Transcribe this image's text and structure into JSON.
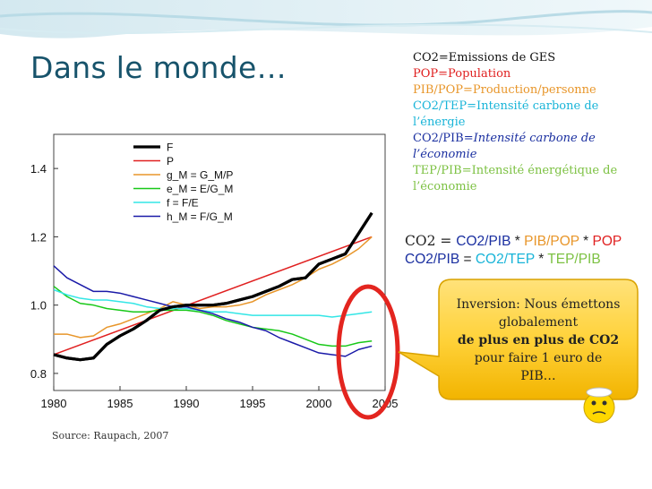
{
  "slide": {
    "title": "Dans le monde…",
    "source": "Source: Raupach, 2007"
  },
  "definitions": [
    {
      "text": "CO2=Emissions de GES",
      "color": "#111111",
      "italic": false
    },
    {
      "text": "POP=Population",
      "color": "#e02020",
      "italic": false
    },
    {
      "text": "PIB/POP=Production/personne",
      "color": "#e8962a",
      "italic": false
    },
    {
      "text": "CO2/TEP=Intensité carbone de l’énergie",
      "color": "#18b4d8",
      "italic": false
    },
    {
      "text_prefix": "CO2/PIB=",
      "text_rest": "Intensité carbone de l’économie",
      "color": "#1a2fa0",
      "italic": true
    },
    {
      "text": "TEP/PIB=Intensité énergétique de l’économie",
      "color": "#7cc142",
      "italic": false
    }
  ],
  "equations": {
    "eq1": [
      {
        "t": "CO2 = ",
        "c": "#222222",
        "serif": true
      },
      {
        "t": "CO2/PIB",
        "c": "#1a2fa0"
      },
      {
        "t": " * ",
        "c": "#222222"
      },
      {
        "t": "PIB/POP",
        "c": "#e8962a"
      },
      {
        "t": " * ",
        "c": "#222222"
      },
      {
        "t": "POP",
        "c": "#e02020"
      }
    ],
    "eq2": [
      {
        "t": "CO2/PIB",
        "c": "#1a2fa0"
      },
      {
        "t": " = ",
        "c": "#222222"
      },
      {
        "t": "CO2/TEP",
        "c": "#18b4d8"
      },
      {
        "t": " * ",
        "c": "#222222"
      },
      {
        "t": "TEP/PIB",
        "c": "#7cc142"
      }
    ]
  },
  "callout": {
    "line1": "Inversion: Nous émettons globalement",
    "bold": "de plus en plus de CO2",
    "line3": "pour faire 1 euro de PIB…"
  },
  "chart_data": {
    "type": "line",
    "xlim": [
      1980,
      2005
    ],
    "ylim": [
      0.75,
      1.5
    ],
    "x_ticks": [
      1980,
      1985,
      1990,
      1995,
      2000,
      2005
    ],
    "y_ticks": [
      0.8,
      1.0,
      1.2,
      1.4
    ],
    "legend_position": "top-left",
    "series": [
      {
        "name": "F",
        "color": "#000000",
        "width": 3.2,
        "x": [
          1980,
          1981,
          1982,
          1983,
          1984,
          1985,
          1986,
          1987,
          1988,
          1989,
          1990,
          1991,
          1992,
          1993,
          1994,
          1995,
          1996,
          1997,
          1998,
          1999,
          2000,
          2001,
          2002,
          2003,
          2004
        ],
        "y": [
          0.855,
          0.845,
          0.84,
          0.845,
          0.885,
          0.91,
          0.93,
          0.955,
          0.985,
          0.995,
          1.0,
          1.0,
          1.0,
          1.005,
          1.015,
          1.025,
          1.04,
          1.055,
          1.075,
          1.08,
          1.12,
          1.135,
          1.15,
          1.21,
          1.27
        ]
      },
      {
        "name": "P",
        "color": "#e02020",
        "width": 1.5,
        "x": [
          1980,
          2004
        ],
        "y": [
          0.855,
          1.2
        ]
      },
      {
        "name": "g_M = G_M/P",
        "color": "#e8962a",
        "width": 1.5,
        "x": [
          1980,
          1981,
          1982,
          1983,
          1984,
          1985,
          1986,
          1987,
          1988,
          1989,
          1990,
          1991,
          1992,
          1993,
          1994,
          1995,
          1996,
          1997,
          1998,
          1999,
          2000,
          2001,
          2002,
          2003,
          2004
        ],
        "y": [
          0.915,
          0.915,
          0.905,
          0.91,
          0.935,
          0.945,
          0.96,
          0.975,
          0.99,
          1.01,
          1.0,
          0.99,
          0.995,
          0.995,
          1.0,
          1.01,
          1.03,
          1.045,
          1.06,
          1.08,
          1.105,
          1.12,
          1.14,
          1.165,
          1.2
        ]
      },
      {
        "name": "e_M = E/G_M",
        "color": "#18c818",
        "width": 1.5,
        "x": [
          1980,
          1981,
          1982,
          1983,
          1984,
          1985,
          1986,
          1987,
          1988,
          1989,
          1990,
          1991,
          1992,
          1993,
          1994,
          1995,
          1996,
          1997,
          1998,
          1999,
          2000,
          2001,
          2002,
          2003,
          2004
        ],
        "y": [
          1.055,
          1.025,
          1.005,
          1.0,
          0.99,
          0.985,
          0.98,
          0.98,
          0.985,
          0.985,
          0.985,
          0.98,
          0.97,
          0.955,
          0.945,
          0.935,
          0.93,
          0.925,
          0.915,
          0.9,
          0.885,
          0.88,
          0.88,
          0.89,
          0.895
        ]
      },
      {
        "name": "f = F/E",
        "color": "#33e6e6",
        "width": 1.5,
        "x": [
          1980,
          1981,
          1982,
          1983,
          1984,
          1985,
          1986,
          1987,
          1988,
          1989,
          1990,
          1991,
          1992,
          1993,
          1994,
          1995,
          1996,
          1997,
          1998,
          1999,
          2000,
          2001,
          2002,
          2003,
          2004
        ],
        "y": [
          1.045,
          1.03,
          1.02,
          1.015,
          1.015,
          1.01,
          1.005,
          0.995,
          0.99,
          0.99,
          0.99,
          0.985,
          0.98,
          0.98,
          0.975,
          0.97,
          0.97,
          0.97,
          0.97,
          0.97,
          0.97,
          0.965,
          0.97,
          0.975,
          0.98
        ]
      },
      {
        "name": "h_M = F/G_M",
        "color": "#1a1aa8",
        "width": 1.5,
        "x": [
          1980,
          1981,
          1982,
          1983,
          1984,
          1985,
          1986,
          1987,
          1988,
          1989,
          1990,
          1991,
          1992,
          1993,
          1994,
          1995,
          1996,
          1997,
          1998,
          1999,
          2000,
          2001,
          2002,
          2003,
          2004
        ],
        "y": [
          1.115,
          1.08,
          1.06,
          1.04,
          1.04,
          1.035,
          1.025,
          1.015,
          1.005,
          0.995,
          0.995,
          0.985,
          0.975,
          0.96,
          0.95,
          0.935,
          0.925,
          0.905,
          0.89,
          0.875,
          0.86,
          0.855,
          0.85,
          0.87,
          0.88
        ]
      }
    ],
    "legend": [
      "F",
      "P",
      "g_M = G_M/P",
      "e_M = E/G_M",
      "f = F/E",
      "h_M = F/G_M"
    ]
  }
}
